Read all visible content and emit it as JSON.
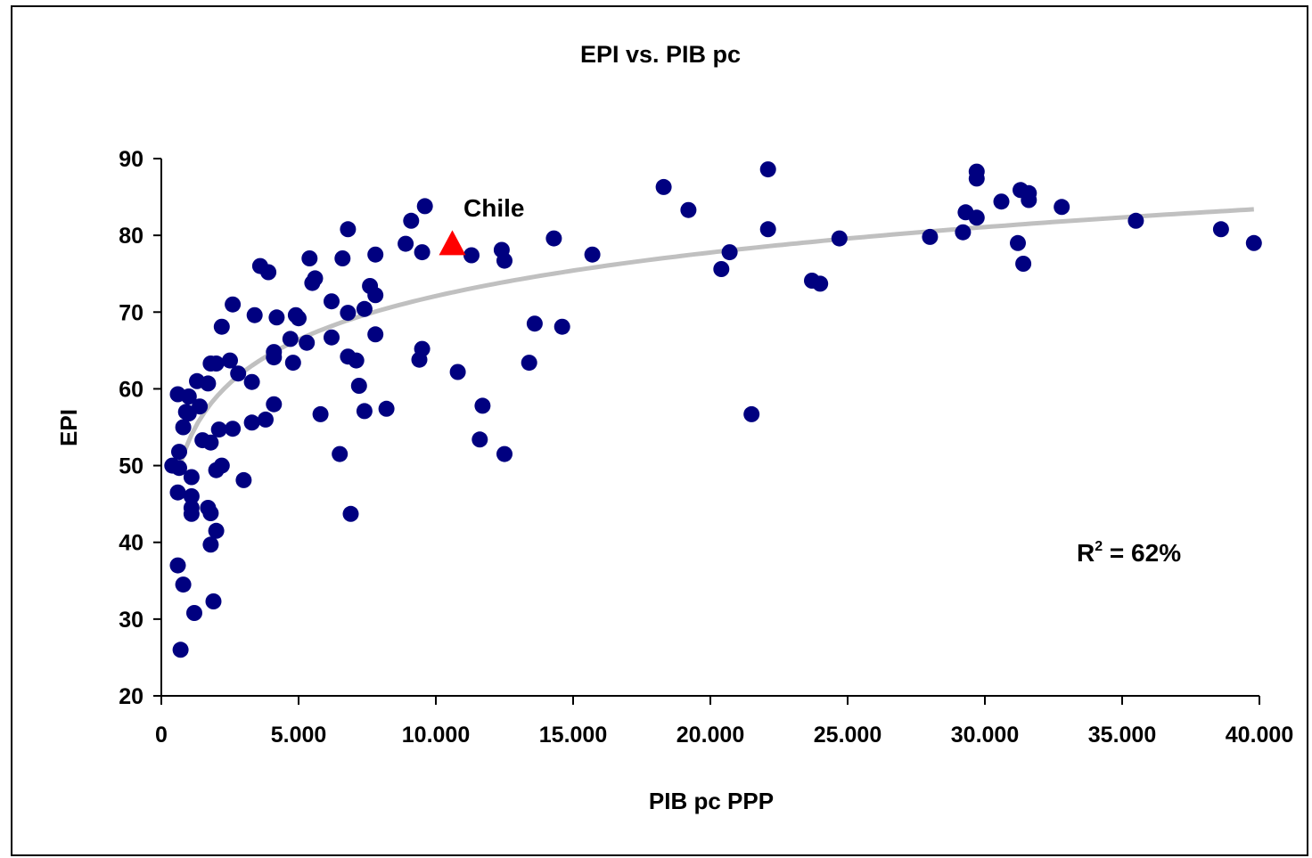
{
  "chart_data": {
    "type": "scatter",
    "title": "EPI vs. PIB pc",
    "xlabel": "PIB pc PPP",
    "ylabel": "EPI",
    "xlim": [
      0,
      40000
    ],
    "ylim": [
      20,
      90
    ],
    "x_ticks": [
      "0",
      "5.000",
      "10.000",
      "15.000",
      "20.000",
      "25.000",
      "30.000",
      "35.000",
      "40.000"
    ],
    "y_ticks": [
      "20",
      "30",
      "40",
      "50",
      "60",
      "70",
      "80",
      "90"
    ],
    "grid": false,
    "legend": "none",
    "colors": {
      "points": "#000080",
      "highlight": "#ff0000",
      "trend": "#c0c0c0"
    },
    "annotations": {
      "highlight_label": "Chile",
      "r2_prefix": "R",
      "r2_sup": "2",
      "r2_value": " = 62%"
    },
    "highlight_point": {
      "label": "Chile",
      "x": 10600,
      "y": 78.7
    },
    "trendline": {
      "type": "logarithmic",
      "a": 8.18,
      "b": -3.25,
      "x_start": 600,
      "x_end": 39800
    },
    "series": [
      {
        "points": [
          [
            400,
            50
          ],
          [
            600,
            59.3
          ],
          [
            650,
            51.8
          ],
          [
            600,
            46.5
          ],
          [
            650,
            49.7
          ],
          [
            600,
            37
          ],
          [
            700,
            26
          ],
          [
            800,
            34.5
          ],
          [
            800,
            55
          ],
          [
            900,
            57
          ],
          [
            1000,
            59
          ],
          [
            1000,
            56.8
          ],
          [
            1100,
            48.5
          ],
          [
            1100,
            46
          ],
          [
            1100,
            44.5
          ],
          [
            1100,
            43.7
          ],
          [
            1200,
            30.8
          ],
          [
            1300,
            61
          ],
          [
            1400,
            57.7
          ],
          [
            1500,
            53.3
          ],
          [
            1700,
            60.7
          ],
          [
            1700,
            44.5
          ],
          [
            1800,
            63.3
          ],
          [
            1800,
            53
          ],
          [
            1800,
            43.8
          ],
          [
            1800,
            39.7
          ],
          [
            1900,
            32.3
          ],
          [
            2000,
            63.3
          ],
          [
            2000,
            49.4
          ],
          [
            2000,
            41.5
          ],
          [
            2100,
            54.7
          ],
          [
            2200,
            68.1
          ],
          [
            2200,
            50
          ],
          [
            2500,
            63.7
          ],
          [
            2600,
            71
          ],
          [
            2600,
            54.8
          ],
          [
            2800,
            62
          ],
          [
            3000,
            48.1
          ],
          [
            3300,
            60.9
          ],
          [
            3300,
            55.6
          ],
          [
            3400,
            69.6
          ],
          [
            3600,
            76
          ],
          [
            3800,
            56
          ],
          [
            3900,
            75.2
          ],
          [
            4100,
            64.8
          ],
          [
            4100,
            58
          ],
          [
            4200,
            69.3
          ],
          [
            4100,
            64.1
          ],
          [
            4700,
            66.5
          ],
          [
            4800,
            63.4
          ],
          [
            4900,
            69.6
          ],
          [
            5000,
            69.2
          ],
          [
            5300,
            66
          ],
          [
            5400,
            77
          ],
          [
            5500,
            73.8
          ],
          [
            5600,
            74.4
          ],
          [
            5800,
            56.7
          ],
          [
            6200,
            71.4
          ],
          [
            6200,
            66.7
          ],
          [
            6500,
            51.5
          ],
          [
            6600,
            77
          ],
          [
            6800,
            80.8
          ],
          [
            6800,
            69.9
          ],
          [
            6800,
            64.2
          ],
          [
            6900,
            43.7
          ],
          [
            7100,
            63.7
          ],
          [
            7200,
            60.4
          ],
          [
            7400,
            70.4
          ],
          [
            7400,
            57.1
          ],
          [
            7600,
            73.4
          ],
          [
            7800,
            72.2
          ],
          [
            7800,
            67.1
          ],
          [
            7800,
            77.5
          ],
          [
            8200,
            57.4
          ],
          [
            8900,
            78.9
          ],
          [
            9100,
            81.9
          ],
          [
            9400,
            63.8
          ],
          [
            9500,
            65.2
          ],
          [
            9500,
            77.8
          ],
          [
            9600,
            83.8
          ],
          [
            10800,
            62.2
          ],
          [
            11300,
            77.4
          ],
          [
            11600,
            53.4
          ],
          [
            11700,
            57.8
          ],
          [
            12400,
            78.1
          ],
          [
            12500,
            76.7
          ],
          [
            12500,
            51.5
          ],
          [
            13400,
            63.4
          ],
          [
            13600,
            68.5
          ],
          [
            14300,
            79.6
          ],
          [
            14600,
            68.1
          ],
          [
            15700,
            77.5
          ],
          [
            18300,
            86.3
          ],
          [
            19200,
            83.3
          ],
          [
            20400,
            75.6
          ],
          [
            20700,
            77.8
          ],
          [
            21500,
            56.7
          ],
          [
            22100,
            88.6
          ],
          [
            22100,
            80.8
          ],
          [
            23700,
            74.1
          ],
          [
            24000,
            73.7
          ],
          [
            24700,
            79.6
          ],
          [
            28000,
            79.8
          ],
          [
            29200,
            80.4
          ],
          [
            29300,
            83
          ],
          [
            29700,
            88.3
          ],
          [
            29700,
            87.4
          ],
          [
            29700,
            82.3
          ],
          [
            30600,
            84.4
          ],
          [
            31200,
            79
          ],
          [
            31300,
            85.9
          ],
          [
            31400,
            76.3
          ],
          [
            31600,
            85.5
          ],
          [
            31600,
            84.6
          ],
          [
            32800,
            83.7
          ],
          [
            35500,
            81.9
          ],
          [
            38600,
            80.8
          ],
          [
            39800,
            79
          ]
        ]
      }
    ]
  }
}
